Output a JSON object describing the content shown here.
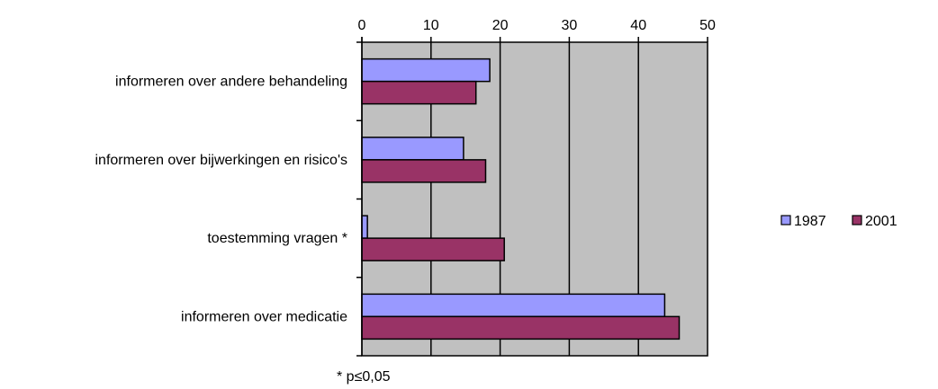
{
  "chart_data": {
    "type": "bar",
    "orientation": "horizontal",
    "title": "",
    "xlabel": "",
    "ylabel": "",
    "xlim": [
      0,
      50
    ],
    "x_ticks": [
      "0",
      "10",
      "20",
      "30",
      "40",
      "50"
    ],
    "x_axis_position": "top",
    "grid": true,
    "plot_background": "#c0c0c0",
    "categories": [
      "informeren over andere behandeling",
      "informeren over bijwerkingen en risico's",
      "toestemming vragen *",
      "informeren over medicatie"
    ],
    "series": [
      {
        "name": "1987",
        "color": "#9999ff",
        "values": [
          18.5,
          14.7,
          0.8,
          43.8
        ]
      },
      {
        "name": "2001",
        "color": "#993366",
        "values": [
          16.5,
          17.9,
          20.6,
          45.9
        ]
      }
    ],
    "legend_position": "right",
    "footnote": "* p≤0,05"
  }
}
